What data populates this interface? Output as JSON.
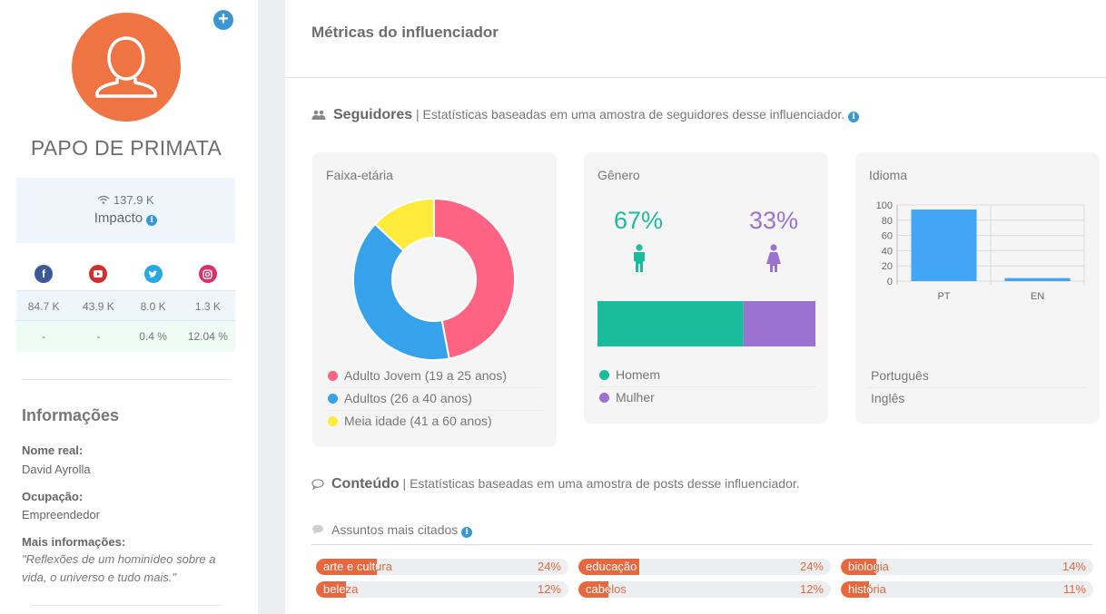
{
  "profile": {
    "name": "PAPO DE PRIMATA",
    "impact_value": "137.9 K",
    "impact_label": "Impacto"
  },
  "social": {
    "networks": [
      {
        "name": "facebook",
        "color": "#3b5998",
        "icon": "facebook-icon",
        "followers": "84.7 K",
        "engagement": "-"
      },
      {
        "name": "youtube",
        "color": "#d32f2f",
        "icon": "youtube-icon",
        "followers": "43.9 K",
        "engagement": "-"
      },
      {
        "name": "twitter",
        "color": "#29a9e1",
        "icon": "twitter-icon",
        "followers": "8.0 K",
        "engagement": "0.4 %"
      },
      {
        "name": "instagram",
        "color": "#d6336c",
        "icon": "instagram-icon",
        "followers": "1.3 K",
        "engagement": "12.04 %"
      }
    ]
  },
  "info": {
    "title": "Informações",
    "real_name_label": "Nome real:",
    "real_name": "David Ayrolla",
    "occupation_label": "Ocupação:",
    "occupation": "Empreendedor",
    "more_label": "Mais informações:",
    "more": "\"Reflexões de um hominídeo sobre a vida, o universo e tudo mais.\""
  },
  "main": {
    "title": "Métricas do influenciador",
    "followers_section": {
      "title": "Seguidores",
      "subtitle": "| Estatísticas baseadas em uma amostra de seguidores desse influenciador."
    },
    "content_section": {
      "title": "Conteúdo",
      "subtitle": "| Estatísticas baseadas em uma amostra de posts desse influenciador."
    },
    "topics_title": "Assuntos mais citados"
  },
  "age_card": {
    "title": "Faixa-etária",
    "legend": [
      {
        "label": "Adulto Jovem (19 a 25 anos)",
        "color": "#ff6384"
      },
      {
        "label": "Adultos (26 a 40 anos)",
        "color": "#36a2eb"
      },
      {
        "label": "Meia idade (41 a 60 anos)",
        "color": "#ffeb3b"
      }
    ]
  },
  "gender_card": {
    "title": "Gênero",
    "male_pct_label": "67%",
    "female_pct_label": "33%",
    "male_color": "#1abc9c",
    "female_color": "#9b72cf",
    "legend": [
      {
        "label": "Homem",
        "color": "#1abc9c"
      },
      {
        "label": "Mulher",
        "color": "#9b72cf"
      }
    ]
  },
  "language_card": {
    "title": "Idioma",
    "legend": [
      "Português",
      "Inglês"
    ]
  },
  "chart_data": [
    {
      "type": "pie",
      "title": "Faixa-etária",
      "categories": [
        "Adulto Jovem (19 a 25 anos)",
        "Adultos (26 a 40 anos)",
        "Meia idade (41 a 60 anos)"
      ],
      "values": [
        47,
        40,
        13
      ],
      "colors": [
        "#ff6384",
        "#36a2eb",
        "#ffeb3b"
      ],
      "donut": true
    },
    {
      "type": "bar",
      "title": "Gênero",
      "categories": [
        "Homem",
        "Mulher"
      ],
      "values": [
        67,
        33
      ],
      "stacked": true,
      "orientation": "horizontal",
      "colors": [
        "#1abc9c",
        "#9b72cf"
      ]
    },
    {
      "type": "bar",
      "title": "Idioma",
      "categories": [
        "PT",
        "EN"
      ],
      "values": [
        94,
        4
      ],
      "ylim": [
        0,
        100
      ],
      "yticks": [
        "0",
        "20",
        "40",
        "60",
        "80",
        "100"
      ],
      "grid": true,
      "color": "#42a5f5"
    }
  ],
  "topics": [
    {
      "name": "arte e cultura",
      "pct_label": "24%",
      "value": 24
    },
    {
      "name": "educação",
      "pct_label": "24%",
      "value": 24
    },
    {
      "name": "biologia",
      "pct_label": "14%",
      "value": 14
    },
    {
      "name": "beleza",
      "pct_label": "12%",
      "value": 12
    },
    {
      "name": "cabelos",
      "pct_label": "12%",
      "value": 12
    },
    {
      "name": "história",
      "pct_label": "11%",
      "value": 11
    }
  ]
}
